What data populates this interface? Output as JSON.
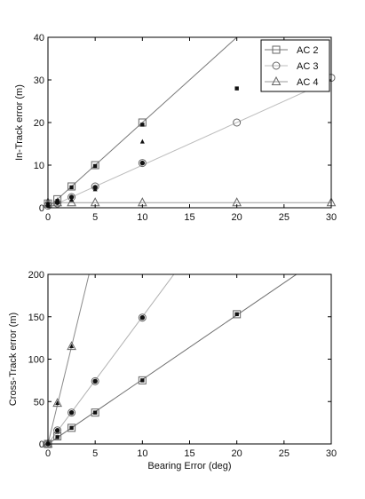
{
  "chart_data": [
    {
      "type": "scatter",
      "title": "",
      "xlabel": "",
      "ylabel": "In-Track error (m)",
      "xlim": [
        0,
        30
      ],
      "ylim": [
        0,
        40
      ],
      "xticks": [
        "0",
        "5",
        "10",
        "15",
        "20",
        "25",
        "30"
      ],
      "yticks": [
        "0",
        "10",
        "20",
        "30",
        "40"
      ],
      "legend_position": "top-right",
      "series": [
        {
          "name": "AC 2",
          "marker": "square",
          "fit_slope": 2.0,
          "x": [
            0,
            1,
            2.5,
            5,
            10
          ],
          "y": [
            1,
            2,
            5,
            10,
            20
          ],
          "samples": [
            [
              0,
              0.8
            ],
            [
              1,
              1.6
            ],
            [
              2.5,
              4.8
            ],
            [
              5,
              9.8
            ],
            [
              10,
              19.5
            ],
            [
              20,
              28
            ]
          ]
        },
        {
          "name": "AC 3",
          "marker": "circle",
          "fit_slope": 1.0,
          "x": [
            0,
            1,
            2.5,
            5,
            10,
            20,
            30
          ],
          "y": [
            0.5,
            1,
            2.5,
            5,
            10.5,
            20,
            30.5
          ],
          "samples": [
            [
              0,
              0.5
            ],
            [
              1,
              1.2
            ],
            [
              2.5,
              2.5
            ],
            [
              5,
              4.8
            ],
            [
              10,
              10.5
            ]
          ]
        },
        {
          "name": "AC 4",
          "marker": "triangle",
          "fit_slope": 0.0,
          "fit_intercept": 1.2,
          "x": [
            0,
            1,
            2.5,
            5,
            10,
            20,
            30
          ],
          "y": [
            1.2,
            1.2,
            1.2,
            1.2,
            1.2,
            1.2,
            1.2
          ],
          "samples": [
            [
              0,
              1
            ],
            [
              1,
              1.3
            ],
            [
              2.5,
              1.8
            ],
            [
              5,
              4.3
            ],
            [
              10,
              15.5
            ]
          ]
        }
      ]
    },
    {
      "type": "scatter",
      "title": "",
      "xlabel": "Bearing Error (deg)",
      "ylabel": "Cross-Track error (m)",
      "xlim": [
        0,
        30
      ],
      "ylim": [
        0,
        200
      ],
      "xticks": [
        "0",
        "5",
        "10",
        "15",
        "20",
        "25",
        "30"
      ],
      "yticks": [
        "0",
        "50",
        "100",
        "150",
        "200"
      ],
      "series": [
        {
          "name": "AC 2",
          "marker": "square",
          "fit_slope": 7.6,
          "x": [
            0,
            1,
            2.5,
            5,
            10,
            20
          ],
          "y": [
            0,
            9,
            19,
            37,
            75,
            153
          ],
          "samples": [
            [
              0,
              0
            ],
            [
              1,
              8
            ],
            [
              2.5,
              19
            ],
            [
              5,
              37
            ],
            [
              10,
              75
            ],
            [
              20,
              153
            ]
          ]
        },
        {
          "name": "AC 3",
          "marker": "circle",
          "fit_slope": 15.0,
          "x": [
            0,
            1,
            2.5,
            5,
            10
          ],
          "y": [
            0,
            16,
            37,
            74,
            149
          ],
          "samples": [
            [
              0,
              0
            ],
            [
              1,
              16
            ],
            [
              2.5,
              37
            ],
            [
              5,
              74
            ],
            [
              10,
              149
            ]
          ]
        },
        {
          "name": "AC 4",
          "marker": "triangle",
          "fit_slope": 46.0,
          "x": [
            0,
            1,
            2.5
          ],
          "y": [
            0,
            48,
            115
          ],
          "samples": [
            [
              0,
              0
            ],
            [
              1,
              48
            ],
            [
              2.5,
              115
            ]
          ]
        }
      ]
    }
  ]
}
